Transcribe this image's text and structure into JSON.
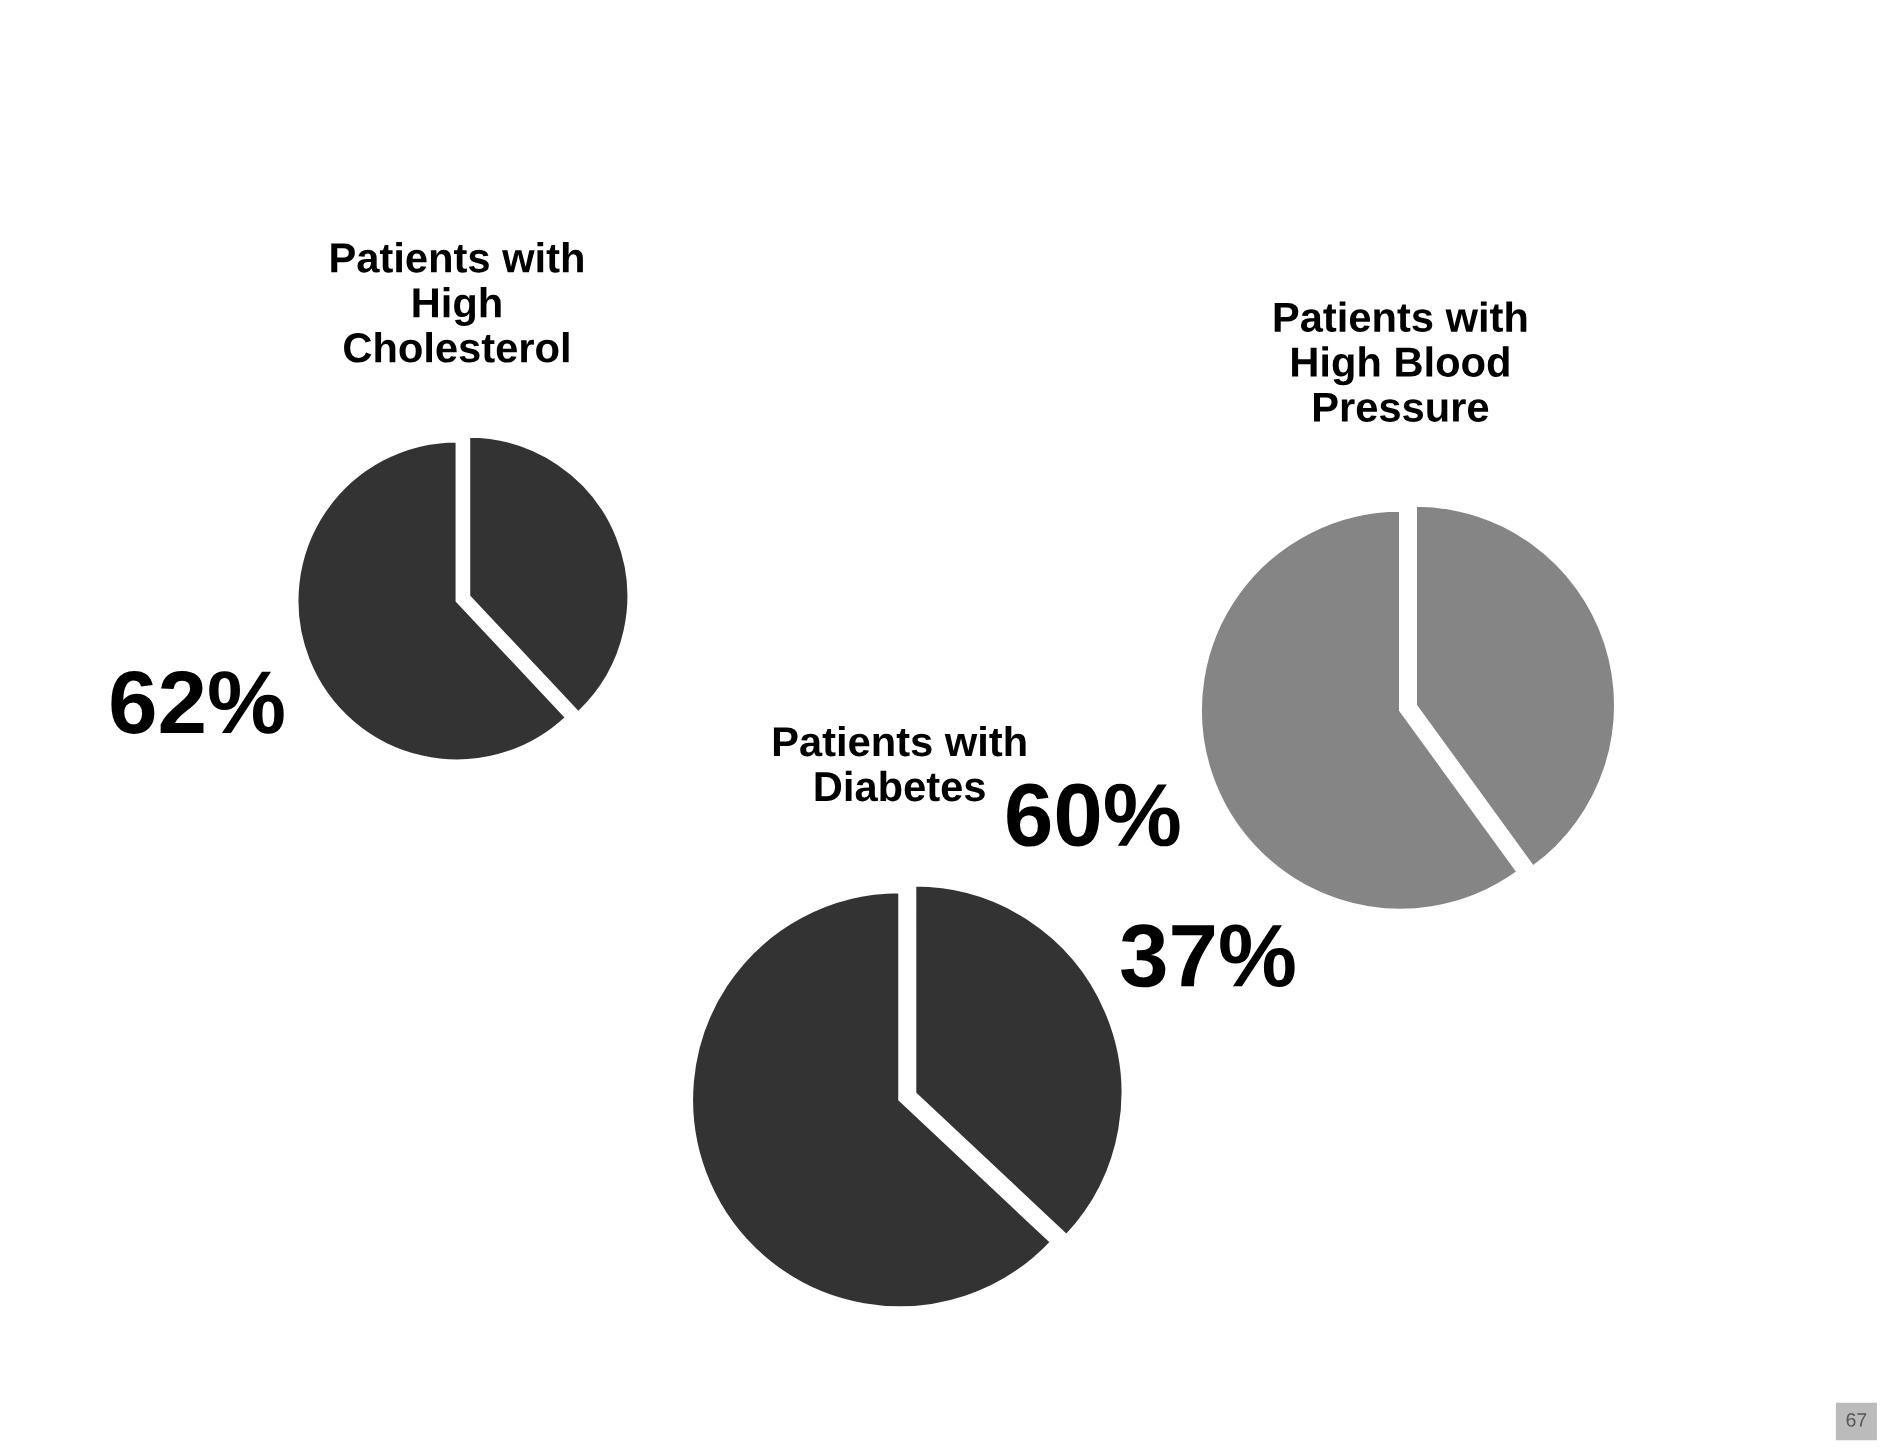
{
  "chart_data": [
    {
      "type": "pie",
      "title": "Patients with\nHigh\nCholesterol",
      "categories": [
        null,
        null
      ],
      "values": [
        38,
        62
      ],
      "colors": [
        "#333333",
        "#333333"
      ],
      "value_labels": [
        null,
        "62%"
      ]
    },
    {
      "type": "pie",
      "title": "Patients with\nDiabetes",
      "categories": [
        null,
        null
      ],
      "values": [
        37,
        63
      ],
      "colors": [
        "#333333",
        "#333333"
      ],
      "value_labels": [
        "37%",
        null
      ]
    },
    {
      "type": "pie",
      "title": "Patients with\nHigh Blood\nPressure",
      "categories": [
        null,
        null
      ],
      "values": [
        40,
        60
      ],
      "colors": [
        "#858585",
        "#858585"
      ],
      "value_labels": [
        null,
        "60%"
      ],
      "annotations": [
        "67"
      ]
    }
  ]
}
